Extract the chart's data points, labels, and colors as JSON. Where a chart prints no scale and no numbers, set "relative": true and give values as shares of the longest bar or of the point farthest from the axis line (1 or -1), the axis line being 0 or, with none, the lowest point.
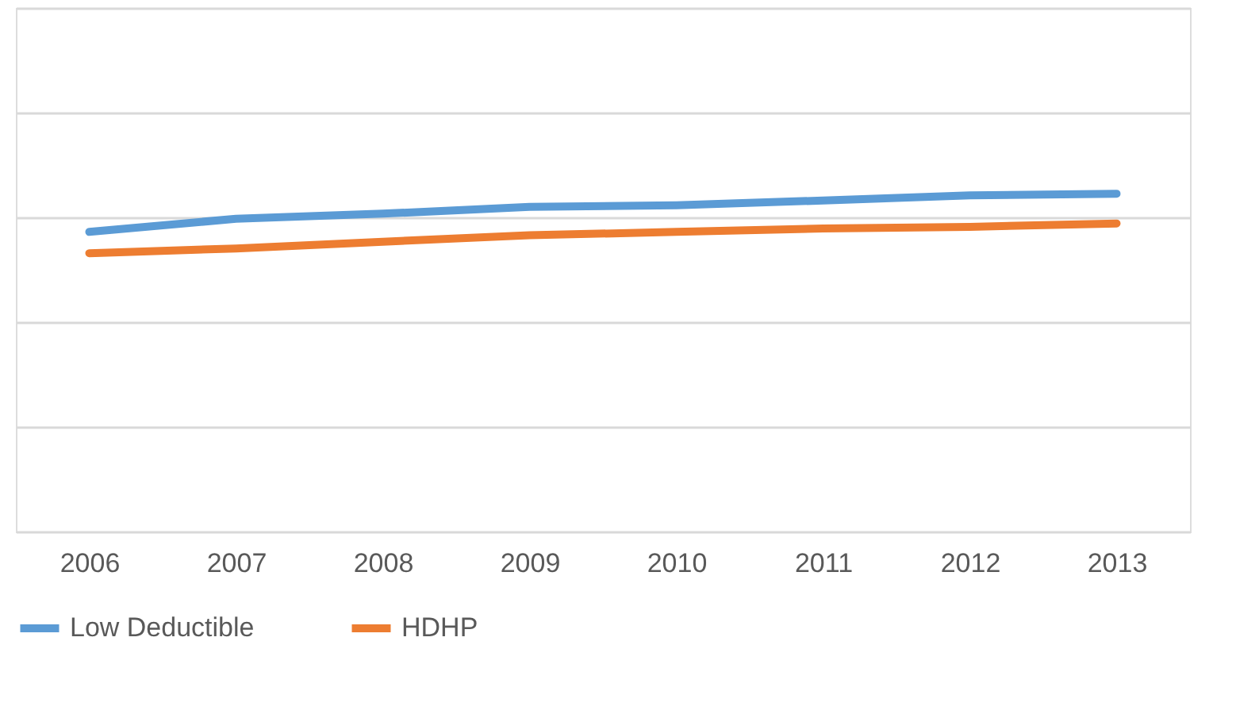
{
  "chart_data": {
    "type": "line",
    "relative": true,
    "grid": "y",
    "legend": "bottom",
    "line_style": "solid",
    "marker": "none",
    "categories": [
      "2006",
      "2007",
      "2008",
      "2009",
      "2010",
      "2011",
      "2012",
      "2013"
    ],
    "series": [
      {
        "name": "Low Deductible",
        "color": "#5b9bd5",
        "values": [
          0.887,
          0.926,
          0.941,
          0.961,
          0.966,
          0.98,
          0.995,
          1.0
        ]
      },
      {
        "name": "HDHP",
        "color": "#ed7d31",
        "values": [
          0.824,
          0.838,
          0.858,
          0.877,
          0.887,
          0.897,
          0.902,
          0.912
        ]
      }
    ]
  }
}
